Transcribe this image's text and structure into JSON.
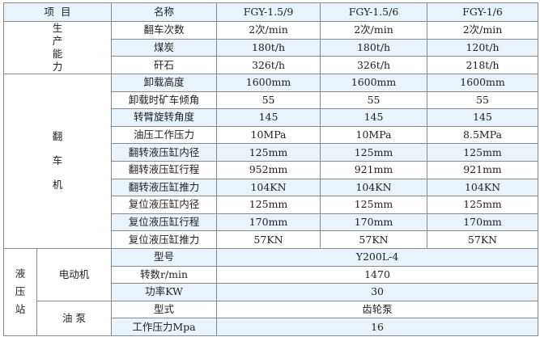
{
  "header": {
    "item": "项  目",
    "name": "名称",
    "models": [
      "FGY-1.5/9",
      "FGY-1.5/6",
      "FGY-1/6"
    ]
  },
  "groups": {
    "capacity": "生产能力",
    "tipper": "翻车机",
    "hydraulic_station": "液压站",
    "motor": "电动机",
    "pump": "油 泵"
  },
  "capacity_rows": [
    {
      "name": "翻车次数",
      "values": [
        "2次/min",
        "2次/min",
        "2次/min"
      ]
    },
    {
      "name": "煤炭",
      "values": [
        "180t/h",
        "180t/h",
        "120t/h"
      ]
    },
    {
      "name": "矸石",
      "values": [
        "326t/h",
        "326t/h",
        "218t/h"
      ]
    }
  ],
  "tipper_rows": [
    {
      "name": "卸载高度",
      "values": [
        "1600mm",
        "1600mm",
        "1600mm"
      ]
    },
    {
      "name": "卸载时矿车倾角",
      "values": [
        "55",
        "55",
        "55"
      ]
    },
    {
      "name": "转臂旋转角度",
      "values": [
        "145",
        "145",
        "145"
      ]
    },
    {
      "name": "油压工作压力",
      "values": [
        "10MPa",
        "10MPa",
        "8.5MPa"
      ]
    },
    {
      "name": "翻转液压缸内径",
      "values": [
        "125mm",
        "125mm",
        "125mm"
      ]
    },
    {
      "name": "翻转液压缸行程",
      "values": [
        "952mm",
        "921mm",
        "921mm"
      ]
    },
    {
      "name": "翻转液压缸推力",
      "values": [
        "104KN",
        "104KN",
        "104KN"
      ]
    },
    {
      "name": "复位液压缸内径",
      "values": [
        "125mm",
        "125mm",
        "125mm"
      ]
    },
    {
      "name": "复位液压缸行程",
      "values": [
        "170mm",
        "170mm",
        "170mm"
      ]
    },
    {
      "name": "复位液压缸推力",
      "values": [
        "57KN",
        "57KN",
        "57KN"
      ]
    }
  ],
  "motor_rows": [
    {
      "name": "型号",
      "value": "Y200L-4"
    },
    {
      "name": "转数r/min",
      "value": "1470"
    },
    {
      "name": "功率KW",
      "value": "30"
    }
  ],
  "pump_rows": [
    {
      "name": "型式",
      "value": "齿轮泵"
    },
    {
      "name": "工作压力Mpa",
      "value": "16"
    }
  ],
  "colors": {
    "row_tint": "#e8f3fc",
    "border": "#8a8a8a"
  }
}
